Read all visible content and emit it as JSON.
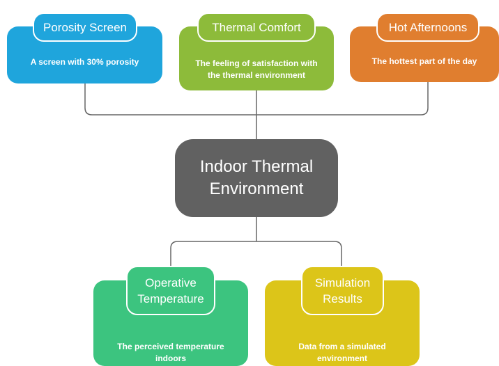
{
  "center": {
    "label": "Indoor Thermal Environment"
  },
  "nodes": [
    {
      "title": "Porosity Screen",
      "description": "A screen with 30% porosity"
    },
    {
      "title": "Thermal Comfort",
      "description": "The feeling of satisfaction with the thermal environment"
    },
    {
      "title": "Hot Afternoons",
      "description": "The hottest part of the day"
    },
    {
      "title": "Operative Temperature",
      "description": "The perceived temperature indoors"
    },
    {
      "title": "Simulation Results",
      "description": "Data from a simulated environment"
    }
  ]
}
